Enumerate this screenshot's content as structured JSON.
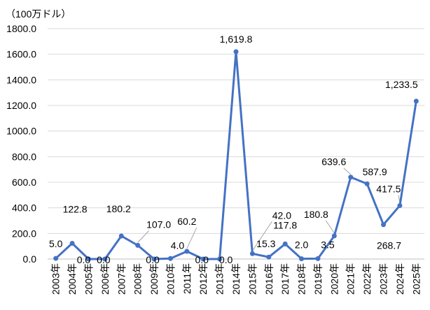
{
  "chart_data": {
    "type": "line",
    "unit_label": "（100万ドル）",
    "categories": [
      "2003年",
      "2004年",
      "2005年",
      "2006年",
      "2007年",
      "2008年",
      "2009年",
      "2010年",
      "2011年",
      "2012年",
      "2013年",
      "2014年",
      "2015年",
      "2016年",
      "2017年",
      "2018年",
      "2019年",
      "2020年",
      "2021年",
      "2022年",
      "2023年",
      "2024年",
      "2025年"
    ],
    "values": [
      5.0,
      122.8,
      0.0,
      0.0,
      180.2,
      107.0,
      0.0,
      4.0,
      60.2,
      0.0,
      0.0,
      1619.8,
      42.0,
      15.3,
      117.8,
      2.0,
      3.5,
      180.8,
      639.6,
      587.9,
      268.7,
      417.5,
      1233.5
    ],
    "data_labels": [
      "5.0",
      "122.8",
      "0.0",
      "0.0",
      "180.2",
      "107.0",
      "0.0",
      "4.0",
      "60.2",
      "0.0",
      "0.0",
      "1,619.8",
      "42.0",
      "15.3",
      "117.8",
      "2.0",
      "3.5",
      "180.8",
      "639.6",
      "587.9",
      "268.7",
      "417.5",
      "1,233.5"
    ],
    "y_ticks": [
      "0.0",
      "200.0",
      "400.0",
      "600.0",
      "800.0",
      "1000.0",
      "1200.0",
      "1400.0",
      "1600.0",
      "1800.0"
    ],
    "ylim": [
      0,
      1800
    ],
    "grid": true,
    "colors": {
      "line": "#4472C4",
      "grid": "#D9D9D9",
      "axis": "#BFBFBF",
      "leader": "#A6A6A6"
    }
  }
}
